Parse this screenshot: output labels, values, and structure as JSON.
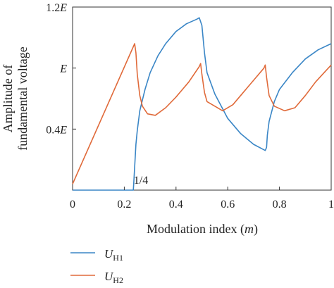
{
  "chart_data": {
    "type": "line",
    "xlabel_main": "Modulation index (",
    "xlabel_var": "m",
    "xlabel_close": ")",
    "ylabel_line1": "Amplitude of",
    "ylabel_line2": "fundamental voltage",
    "xlim": [
      0,
      1
    ],
    "ylim": [
      0,
      1.2
    ],
    "x_ticks": [
      {
        "value": 0,
        "label": "0"
      },
      {
        "value": 0.2,
        "label": "0.2"
      },
      {
        "value": 0.4,
        "label": "0.4"
      },
      {
        "value": 0.6,
        "label": "0.6"
      },
      {
        "value": 0.8,
        "label": "0.8"
      },
      {
        "value": 1.0,
        "label": "1"
      }
    ],
    "y_ticks": [
      {
        "value": 0.4,
        "num": "0.4",
        "sym": "E"
      },
      {
        "value": 0.8,
        "num": "",
        "sym": "E"
      },
      {
        "value": 1.2,
        "num": "1.2",
        "sym": "E"
      }
    ],
    "annotation": {
      "text": "1/4",
      "x": 0.25,
      "y": 0.0
    },
    "series": [
      {
        "legend_main": "U",
        "legend_sub": "H1",
        "color": "#3a86c6",
        "x": [
          0,
          0.235,
          0.237,
          0.245,
          0.25,
          0.26,
          0.28,
          0.3,
          0.33,
          0.36,
          0.4,
          0.44,
          0.48,
          0.49,
          0.5,
          0.51,
          0.52,
          0.55,
          0.6,
          0.65,
          0.7,
          0.745,
          0.75,
          0.753,
          0.76,
          0.78,
          0.8,
          0.85,
          0.9,
          0.95,
          1.0
        ],
        "y": [
          0.0,
          0.0,
          0.06,
          0.3,
          0.39,
          0.52,
          0.66,
          0.77,
          0.88,
          0.96,
          1.04,
          1.09,
          1.12,
          1.13,
          1.08,
          0.9,
          0.77,
          0.63,
          0.47,
          0.37,
          0.3,
          0.26,
          0.28,
          0.36,
          0.45,
          0.58,
          0.66,
          0.77,
          0.86,
          0.92,
          0.96
        ]
      },
      {
        "legend_main": "U",
        "legend_sub": "H2",
        "color": "#e06a3a",
        "x": [
          0,
          0.24,
          0.245,
          0.25,
          0.26,
          0.27,
          0.29,
          0.32,
          0.36,
          0.4,
          0.45,
          0.49,
          0.495,
          0.5,
          0.51,
          0.52,
          0.55,
          0.58,
          0.62,
          0.66,
          0.7,
          0.74,
          0.745,
          0.75,
          0.76,
          0.78,
          0.82,
          0.86,
          0.9,
          0.94,
          1.0
        ],
        "y": [
          0.04,
          0.96,
          0.9,
          0.76,
          0.62,
          0.55,
          0.5,
          0.49,
          0.54,
          0.61,
          0.71,
          0.81,
          0.83,
          0.76,
          0.64,
          0.58,
          0.55,
          0.52,
          0.56,
          0.64,
          0.72,
          0.8,
          0.82,
          0.74,
          0.62,
          0.55,
          0.52,
          0.54,
          0.62,
          0.71,
          0.82
        ]
      }
    ]
  }
}
